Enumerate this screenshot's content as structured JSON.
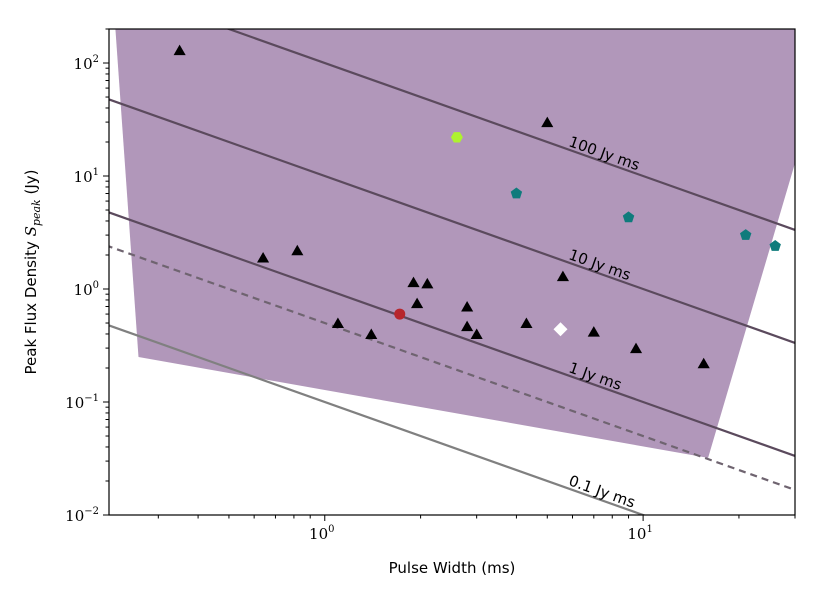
{
  "chart_data": {
    "type": "scatter",
    "xlabel": "Pulse Width (ms)",
    "ylabel_main": "Peak Flux Density ",
    "ylabel_symbol": "S",
    "ylabel_subscript": "peak",
    "ylabel_unit": " (Jy)",
    "x_scale": "log",
    "y_scale": "log",
    "xlim": [
      0.21,
      30
    ],
    "ylim": [
      0.01,
      200
    ],
    "x_ticks": [
      {
        "value": 1,
        "base": "10",
        "exp": "0"
      },
      {
        "value": 10,
        "base": "10",
        "exp": "1"
      }
    ],
    "y_ticks": [
      {
        "value": 0.01,
        "base": "10",
        "exp": "−2"
      },
      {
        "value": 0.1,
        "base": "10",
        "exp": "−1"
      },
      {
        "value": 1,
        "base": "10",
        "exp": "0"
      },
      {
        "value": 10,
        "base": "10",
        "exp": "1"
      },
      {
        "value": 100,
        "base": "10",
        "exp": "2"
      }
    ],
    "shaded_region": {
      "color": "#b197ba",
      "points": [
        [
          0.22,
          200
        ],
        [
          0.26,
          0.25
        ],
        [
          16,
          0.032
        ],
        [
          30,
          13
        ],
        [
          30,
          200
        ]
      ]
    },
    "fluence_lines": [
      {
        "fluence": 100,
        "label": "100 Jy ms",
        "label_x": 5.8,
        "label_y": 18.5,
        "color": "#5b4a5d",
        "dash": false
      },
      {
        "fluence": 10,
        "label": "10 Jy ms",
        "label_x": 5.8,
        "label_y": 1.85,
        "color": "#5b4a5d",
        "dash": false
      },
      {
        "fluence": 1,
        "label": "1 Jy ms",
        "label_x": 5.8,
        "label_y": 0.185,
        "color": "#5b4a5d",
        "dash": false
      },
      {
        "fluence": 0.5,
        "label": "",
        "color": "#6f6470",
        "dash": true
      },
      {
        "fluence": 0.1,
        "label": "0.1 Jy ms",
        "label_x": 5.8,
        "label_y": 0.0185,
        "color": "#808080",
        "dash": false
      }
    ],
    "series": [
      {
        "marker": "triangle",
        "color": "#000000",
        "points": [
          [
            0.35,
            130
          ],
          [
            0.64,
            1.9
          ],
          [
            0.82,
            2.2
          ],
          [
            1.1,
            0.5
          ],
          [
            1.4,
            0.4
          ],
          [
            1.9,
            1.15
          ],
          [
            1.95,
            0.75
          ],
          [
            2.1,
            1.12
          ],
          [
            2.8,
            0.7
          ],
          [
            2.8,
            0.47
          ],
          [
            3.0,
            0.4
          ],
          [
            4.3,
            0.5
          ],
          [
            5.0,
            30
          ],
          [
            5.6,
            1.3
          ],
          [
            7.0,
            0.42
          ],
          [
            9.5,
            0.3
          ],
          [
            15.5,
            0.22
          ]
        ]
      },
      {
        "marker": "pentagon",
        "color": "#0f7b7c",
        "points": [
          [
            4.0,
            7.0
          ],
          [
            9.0,
            4.3
          ],
          [
            21,
            3.0
          ],
          [
            26,
            2.4
          ]
        ]
      },
      {
        "marker": "hexagon",
        "color": "#aef22f",
        "points": [
          [
            2.6,
            22
          ]
        ]
      },
      {
        "marker": "circle",
        "color": "#b7262c",
        "points": [
          [
            1.72,
            0.6
          ]
        ]
      },
      {
        "marker": "diamond",
        "color": "#ffffff",
        "points": [
          [
            5.5,
            0.44
          ]
        ]
      }
    ]
  }
}
